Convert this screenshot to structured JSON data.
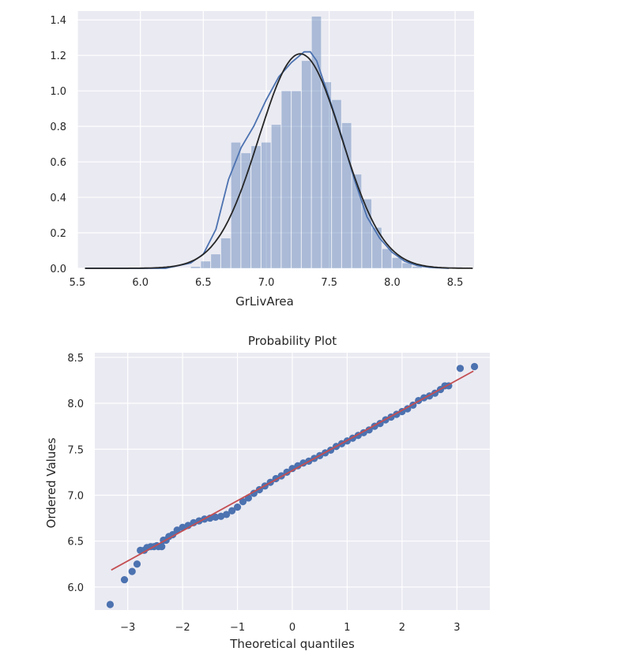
{
  "chart_data": [
    {
      "type": "bar",
      "title": "",
      "xlabel": "GrLivArea",
      "ylabel": "",
      "xlim": [
        5.5,
        8.65
      ],
      "ylim": [
        0,
        1.45
      ],
      "xticks": [
        "5.5",
        "6.0",
        "6.5",
        "7.0",
        "7.5",
        "8.0",
        "8.5"
      ],
      "yticks": [
        "0.0",
        "0.2",
        "0.4",
        "0.6",
        "0.8",
        "1.0",
        "1.2",
        "1.4"
      ],
      "grid": true,
      "colors": {
        "bars": "#4c72b0",
        "kde": "#4c72b0",
        "normal_fit": "#262626",
        "background": "#eaeaf2"
      },
      "histogram": {
        "bin_width": 0.08,
        "bins": [
          {
            "x0": 6.4,
            "density": 0.01
          },
          {
            "x0": 6.48,
            "density": 0.04
          },
          {
            "x0": 6.56,
            "density": 0.08
          },
          {
            "x0": 6.64,
            "density": 0.17
          },
          {
            "x0": 6.72,
            "density": 0.71
          },
          {
            "x0": 6.8,
            "density": 0.65
          },
          {
            "x0": 6.88,
            "density": 0.69
          },
          {
            "x0": 6.96,
            "density": 0.71
          },
          {
            "x0": 7.04,
            "density": 0.81
          },
          {
            "x0": 7.12,
            "density": 1.0
          },
          {
            "x0": 7.2,
            "density": 1.0
          },
          {
            "x0": 7.28,
            "density": 1.17
          },
          {
            "x0": 7.36,
            "density": 1.42
          },
          {
            "x0": 7.44,
            "density": 1.05
          },
          {
            "x0": 7.52,
            "density": 0.95
          },
          {
            "x0": 7.6,
            "density": 0.82
          },
          {
            "x0": 7.68,
            "density": 0.53
          },
          {
            "x0": 7.76,
            "density": 0.39
          },
          {
            "x0": 7.84,
            "density": 0.23
          },
          {
            "x0": 7.92,
            "density": 0.11
          },
          {
            "x0": 8.0,
            "density": 0.06
          },
          {
            "x0": 8.08,
            "density": 0.03
          },
          {
            "x0": 8.16,
            "density": 0.01
          }
        ]
      },
      "series": [
        {
          "kind": "kde",
          "x": [
            5.56,
            6.2,
            6.4,
            6.5,
            6.6,
            6.7,
            6.8,
            6.9,
            7.0,
            7.1,
            7.2,
            7.3,
            7.35,
            7.4,
            7.5,
            7.6,
            7.7,
            7.8,
            7.9,
            8.0,
            8.1,
            8.2,
            8.3,
            8.45
          ],
          "values": [
            0.0,
            0.0,
            0.03,
            0.08,
            0.22,
            0.5,
            0.68,
            0.8,
            0.95,
            1.08,
            1.16,
            1.22,
            1.22,
            1.17,
            0.96,
            0.74,
            0.5,
            0.29,
            0.17,
            0.09,
            0.04,
            0.015,
            0.005,
            0.0
          ]
        },
        {
          "kind": "normal_fit",
          "mu": 7.27,
          "sigma": 0.33,
          "x_range": [
            5.56,
            8.64
          ]
        }
      ]
    },
    {
      "type": "scatter",
      "title": "Probability Plot",
      "xlabel": "Theoretical quantiles",
      "ylabel": "Ordered Values",
      "xlim": [
        -3.6,
        3.6
      ],
      "ylim": [
        5.75,
        8.55
      ],
      "xticks": [
        "−3",
        "−2",
        "−1",
        "0",
        "1",
        "2",
        "3"
      ],
      "yticks": [
        "6.0",
        "6.5",
        "7.0",
        "7.5",
        "8.0",
        "8.5"
      ],
      "grid": true,
      "colors": {
        "points": "#4c72b0",
        "fit_line": "#c44e52",
        "background": "#eaeaf2"
      },
      "fit_line": {
        "slope": 0.328,
        "intercept": 7.268,
        "x_range": [
          -3.3,
          3.3
        ]
      },
      "series": [
        {
          "kind": "points",
          "points": [
            [
              -3.32,
              5.81
            ],
            [
              -3.06,
              6.08
            ],
            [
              -2.92,
              6.17
            ],
            [
              -2.83,
              6.25
            ],
            [
              -2.77,
              6.4
            ],
            [
              -2.7,
              6.4
            ],
            [
              -2.65,
              6.43
            ],
            [
              -2.58,
              6.44
            ],
            [
              -2.52,
              6.44
            ],
            [
              -2.47,
              6.45
            ],
            [
              -2.44,
              6.44
            ],
            [
              -2.38,
              6.44
            ],
            [
              -2.35,
              6.51
            ],
            [
              -2.3,
              6.51
            ],
            [
              -2.25,
              6.55
            ],
            [
              -2.18,
              6.57
            ],
            [
              -2.1,
              6.62
            ],
            [
              -2.0,
              6.65
            ],
            [
              -1.9,
              6.67
            ],
            [
              -1.8,
              6.7
            ],
            [
              -1.7,
              6.72
            ],
            [
              -1.6,
              6.74
            ],
            [
              -1.5,
              6.75
            ],
            [
              -1.4,
              6.76
            ],
            [
              -1.3,
              6.77
            ],
            [
              -1.2,
              6.79
            ],
            [
              -1.1,
              6.83
            ],
            [
              -1.0,
              6.87
            ],
            [
              -0.9,
              6.93
            ],
            [
              -0.8,
              6.97
            ],
            [
              -0.7,
              7.02
            ],
            [
              -0.6,
              7.06
            ],
            [
              -0.5,
              7.1
            ],
            [
              -0.4,
              7.14
            ],
            [
              -0.3,
              7.18
            ],
            [
              -0.2,
              7.21
            ],
            [
              -0.1,
              7.25
            ],
            [
              0.0,
              7.29
            ],
            [
              0.1,
              7.32
            ],
            [
              0.2,
              7.35
            ],
            [
              0.3,
              7.37
            ],
            [
              0.4,
              7.4
            ],
            [
              0.5,
              7.43
            ],
            [
              0.6,
              7.46
            ],
            [
              0.7,
              7.49
            ],
            [
              0.8,
              7.53
            ],
            [
              0.9,
              7.56
            ],
            [
              1.0,
              7.59
            ],
            [
              1.1,
              7.62
            ],
            [
              1.2,
              7.65
            ],
            [
              1.3,
              7.68
            ],
            [
              1.4,
              7.71
            ],
            [
              1.5,
              7.75
            ],
            [
              1.6,
              7.78
            ],
            [
              1.7,
              7.82
            ],
            [
              1.8,
              7.85
            ],
            [
              1.9,
              7.88
            ],
            [
              2.0,
              7.91
            ],
            [
              2.1,
              7.94
            ],
            [
              2.2,
              7.98
            ],
            [
              2.3,
              8.03
            ],
            [
              2.4,
              8.06
            ],
            [
              2.5,
              8.08
            ],
            [
              2.6,
              8.11
            ],
            [
              2.7,
              8.15
            ],
            [
              2.78,
              8.19
            ],
            [
              2.85,
              8.19
            ],
            [
              3.06,
              8.38
            ],
            [
              3.32,
              8.4
            ]
          ]
        }
      ]
    }
  ]
}
